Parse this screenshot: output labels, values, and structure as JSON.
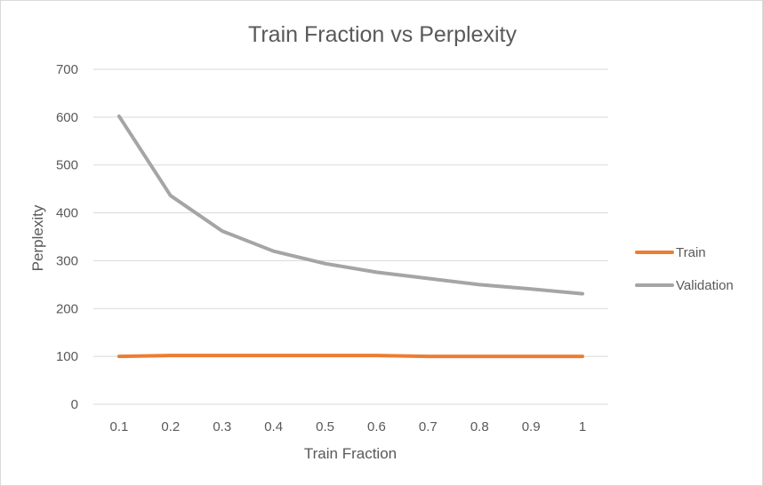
{
  "chart_data": {
    "type": "line",
    "title": "Train Fraction vs Perplexity",
    "xlabel": "Train Fraction",
    "ylabel": "Perplexity",
    "x": [
      "0.1",
      "0.2",
      "0.3",
      "0.4",
      "0.5",
      "0.6",
      "0.7",
      "0.8",
      "0.9",
      "1"
    ],
    "ylim": [
      0,
      700
    ],
    "yticks": [
      0,
      100,
      200,
      300,
      400,
      500,
      600,
      700
    ],
    "grid": true,
    "legend_position": "right",
    "series": [
      {
        "name": "Train",
        "color": "#ED7D31",
        "values": [
          100,
          102,
          102,
          102,
          102,
          102,
          100,
          100,
          100,
          100
        ]
      },
      {
        "name": "Validation",
        "color": "#A5A5A5",
        "values": [
          602,
          436,
          362,
          320,
          294,
          276,
          263,
          250,
          241,
          231
        ]
      }
    ]
  }
}
